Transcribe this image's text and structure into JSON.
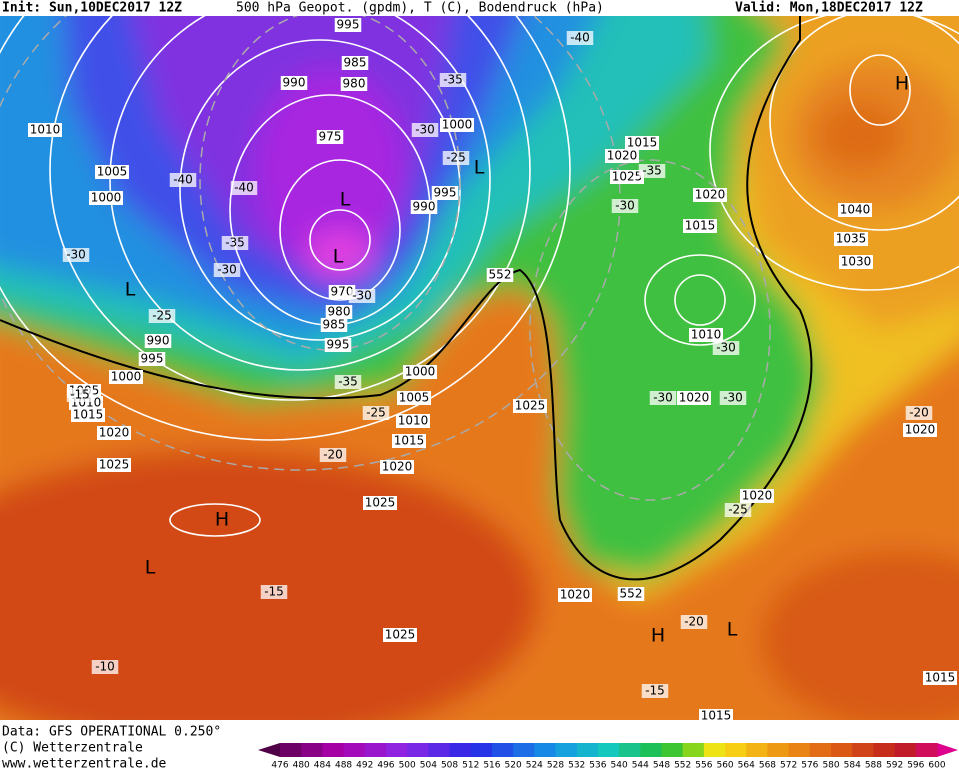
{
  "header": {
    "init": "Init: Sun,10DEC2017 12Z",
    "fields": "500 hPa Geopot. (gpdm), T (C), Bodendruck (hPa)",
    "valid": "Valid: Mon,18DEC2017 12Z"
  },
  "footer": {
    "data": "Data: GFS OPERATIONAL 0.250°",
    "copyright": "(C) Wetterzentrale",
    "url": "www.wetterzentrale.de"
  },
  "colorbar": {
    "labels": [
      476,
      480,
      484,
      488,
      492,
      496,
      500,
      504,
      508,
      512,
      516,
      520,
      524,
      528,
      532,
      536,
      540,
      544,
      548,
      552,
      556,
      560,
      564,
      568,
      572,
      576,
      580,
      584,
      588,
      592,
      596,
      600
    ]
  },
  "map": {
    "isobar_labels": [
      "995",
      "985",
      "990",
      "980",
      "1010",
      "975",
      "1000",
      "1005",
      "1000",
      "995",
      "990",
      "970",
      "980",
      "985",
      "990",
      "995",
      "995",
      "1000",
      "1005",
      "1010",
      "1015",
      "1020",
      "1025",
      "1000",
      "1005",
      "1010",
      "1015",
      "1020",
      "1025",
      "1025",
      "1015",
      "1020",
      "1025",
      "1020",
      "1015",
      "1010",
      "1020",
      "1040",
      "1035",
      "1030",
      "1020",
      "1020",
      "1020",
      "1025",
      "1015",
      "1015"
    ],
    "temperature_labels": [
      "-40",
      "-35",
      "-30",
      "-25",
      "-35",
      "-30",
      "-40",
      "-40",
      "-35",
      "-30",
      "-30",
      "-25",
      "-30",
      "-35",
      "-25",
      "-20",
      "-15",
      "-30",
      "-30",
      "-30",
      "-20",
      "-25",
      "-15",
      "-20",
      "-10",
      "-15"
    ],
    "pressure_centers": [
      "H",
      "L",
      "L",
      "L",
      "L",
      "H",
      "L",
      "H",
      "L"
    ],
    "contour_labels": [
      "552",
      "552"
    ]
  }
}
